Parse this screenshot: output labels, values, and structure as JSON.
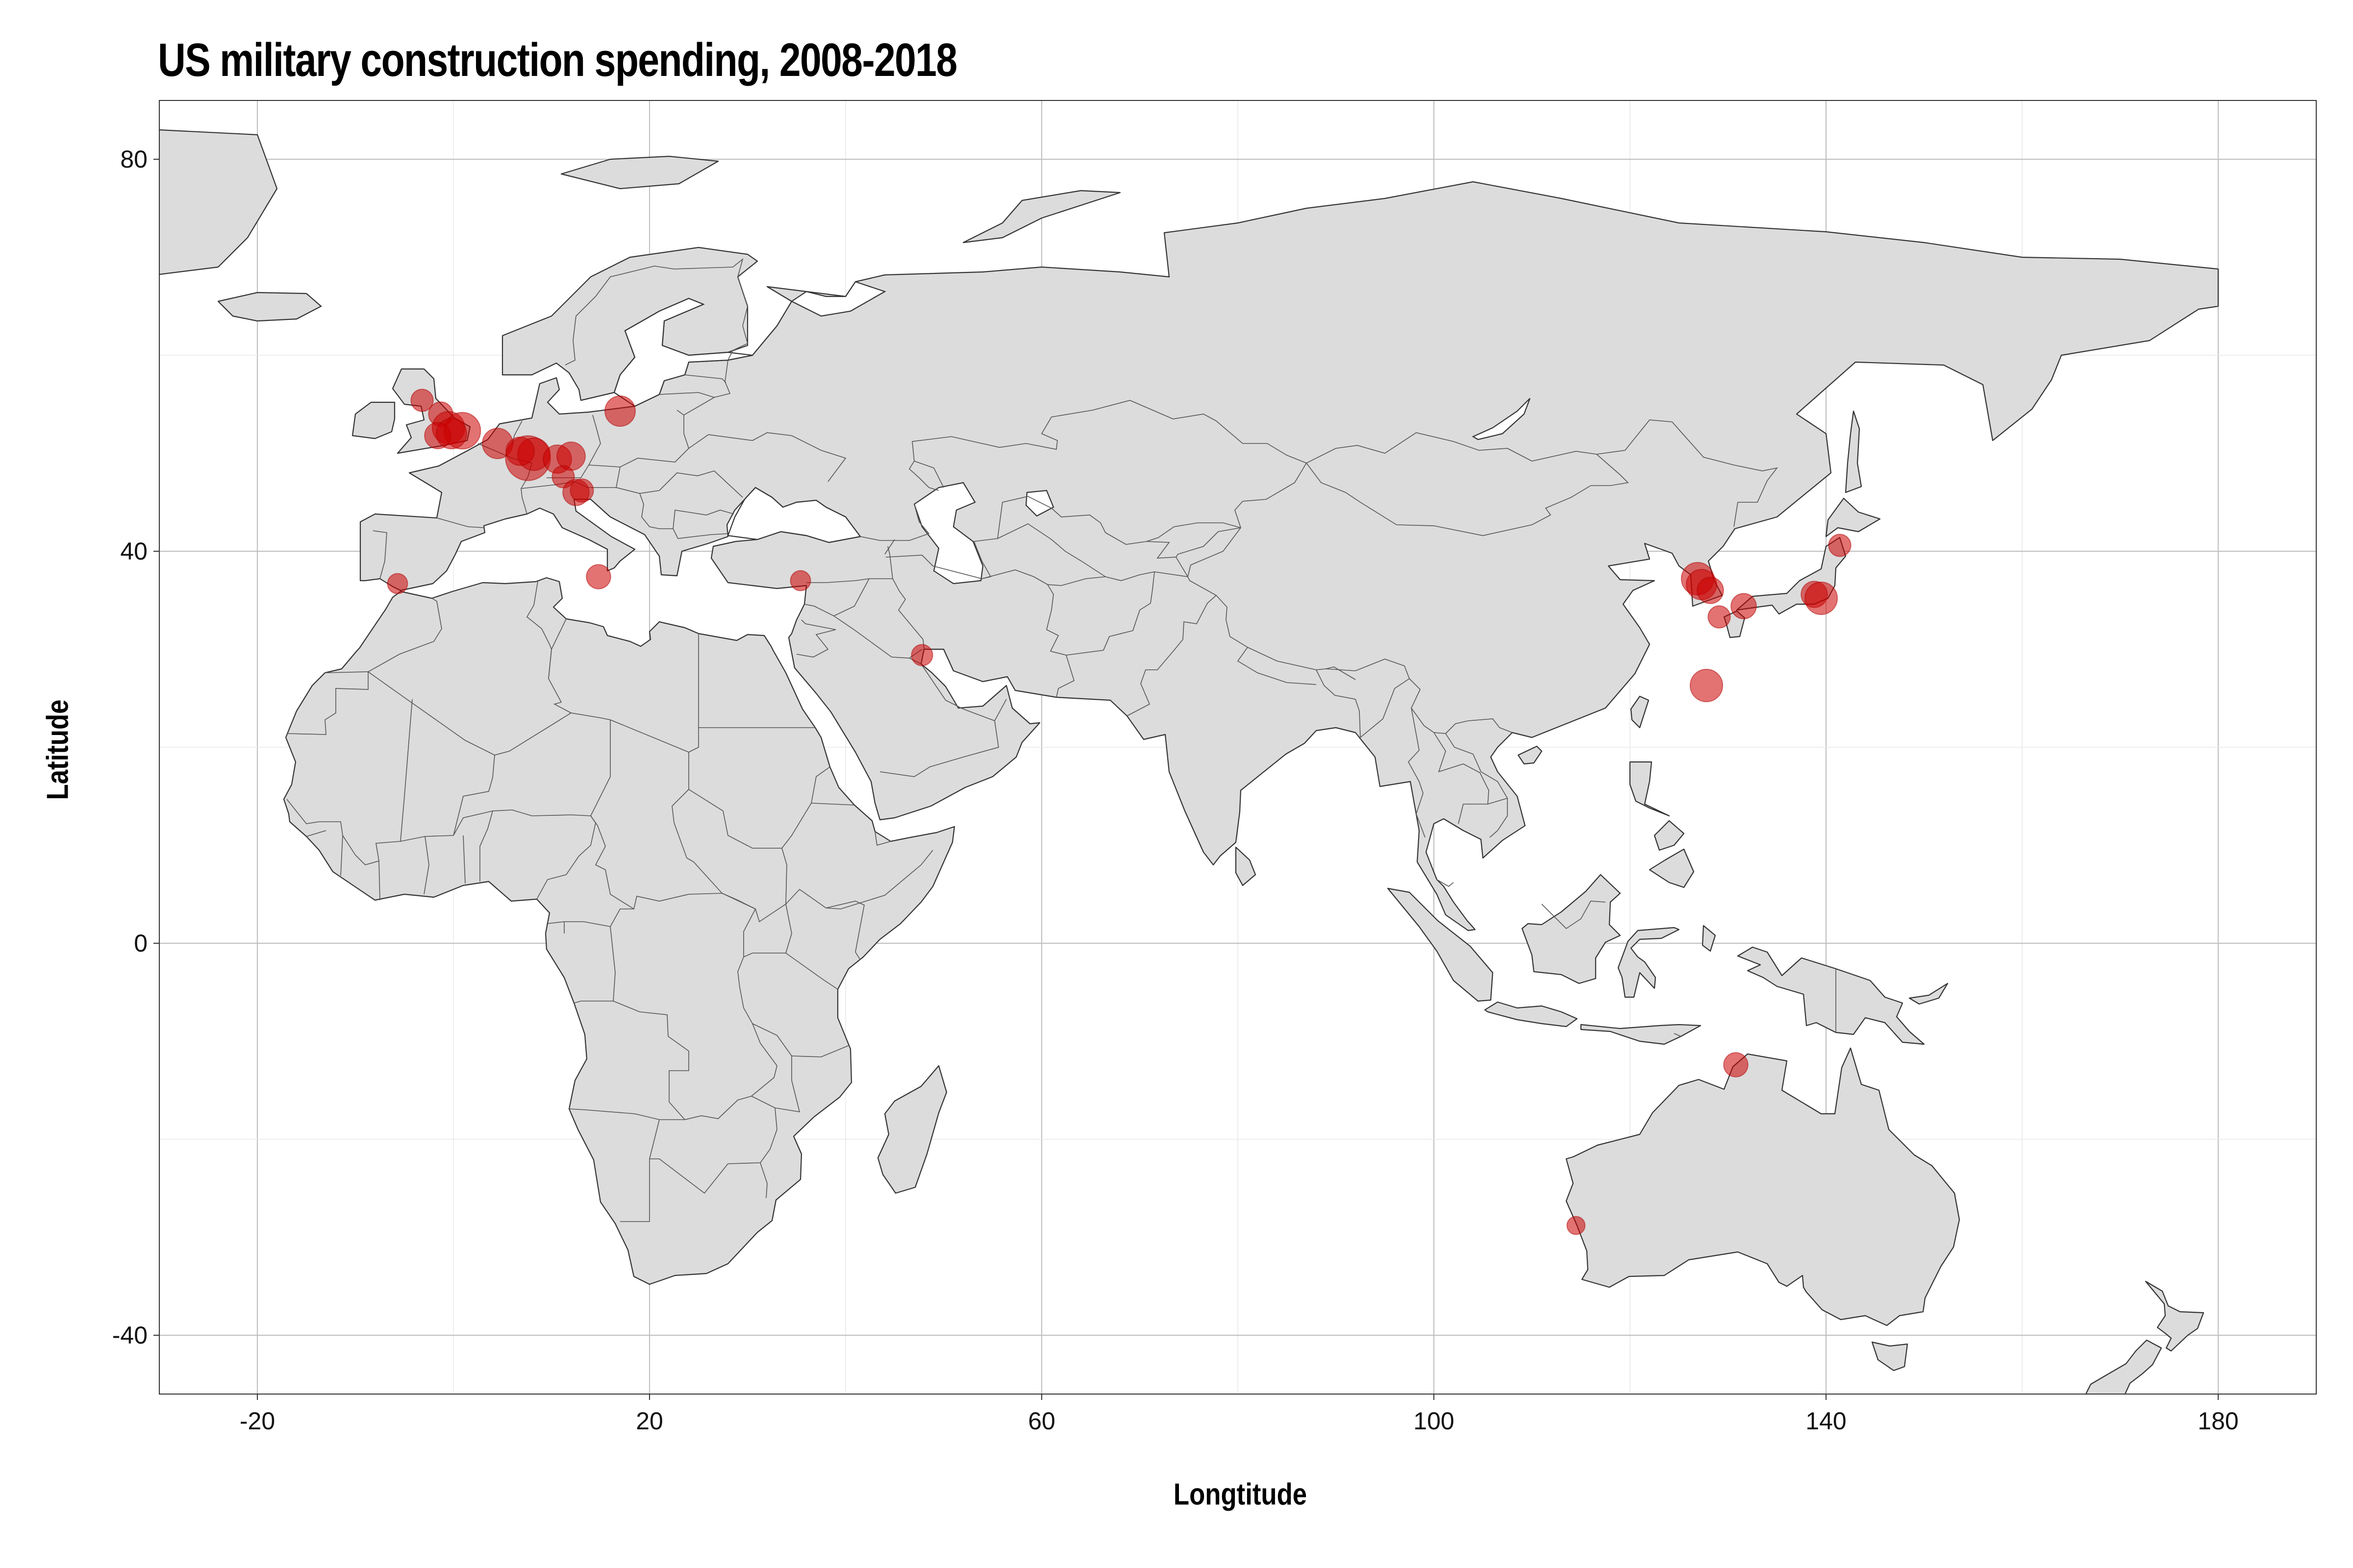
{
  "chart_data": {
    "type": "scatter",
    "title": "US military construction spending, 2008-2018",
    "xlabel": "Longtitude",
    "ylabel": "Latitude",
    "xlim": [
      -30,
      190
    ],
    "ylim": [
      -46,
      86
    ],
    "xticks": [
      -20,
      20,
      60,
      100,
      140,
      180
    ],
    "yticks": [
      -40,
      0,
      40,
      80
    ],
    "grid": true,
    "basemap": "world countries, light grey fill with dark outlines",
    "point_color": "#cc0000",
    "point_opacity": 0.55,
    "points": [
      {
        "lon": -3.2,
        "lat": 55.4,
        "size": 1.2
      },
      {
        "lon": -1.3,
        "lat": 54.0,
        "size": 1.4
      },
      {
        "lon": -0.5,
        "lat": 52.6,
        "size": 2.2
      },
      {
        "lon": 0.9,
        "lat": 52.3,
        "size": 2.6
      },
      {
        "lon": -1.6,
        "lat": 51.8,
        "size": 1.6
      },
      {
        "lon": -0.2,
        "lat": 52.0,
        "size": 2.0
      },
      {
        "lon": 4.5,
        "lat": 51.0,
        "size": 2.0
      },
      {
        "lon": 7.6,
        "lat": 49.5,
        "size": 3.4
      },
      {
        "lon": 8.2,
        "lat": 49.9,
        "size": 2.2
      },
      {
        "lon": 6.8,
        "lat": 50.2,
        "size": 1.8
      },
      {
        "lon": 10.6,
        "lat": 49.4,
        "size": 1.8
      },
      {
        "lon": 12.0,
        "lat": 49.7,
        "size": 1.8
      },
      {
        "lon": 11.2,
        "lat": 47.6,
        "size": 1.2
      },
      {
        "lon": 12.5,
        "lat": 46.0,
        "size": 1.6
      },
      {
        "lon": 13.1,
        "lat": 46.2,
        "size": 1.3
      },
      {
        "lon": 17.0,
        "lat": 54.3,
        "size": 2.0
      },
      {
        "lon": 14.8,
        "lat": 37.4,
        "size": 1.4
      },
      {
        "lon": -5.7,
        "lat": 36.7,
        "size": 1.0
      },
      {
        "lon": 35.4,
        "lat": 37.0,
        "size": 1.0
      },
      {
        "lon": 47.8,
        "lat": 29.4,
        "size": 1.1
      },
      {
        "lon": 126.9,
        "lat": 37.2,
        "size": 2.2
      },
      {
        "lon": 127.3,
        "lat": 36.6,
        "size": 2.0
      },
      {
        "lon": 128.2,
        "lat": 36.0,
        "size": 1.6
      },
      {
        "lon": 129.1,
        "lat": 33.3,
        "size": 1.2
      },
      {
        "lon": 131.6,
        "lat": 34.4,
        "size": 1.5
      },
      {
        "lon": 138.8,
        "lat": 35.6,
        "size": 1.6
      },
      {
        "lon": 139.5,
        "lat": 35.2,
        "size": 2.2
      },
      {
        "lon": 141.4,
        "lat": 40.6,
        "size": 1.2
      },
      {
        "lon": 127.8,
        "lat": 26.3,
        "size": 2.2
      },
      {
        "lon": 130.8,
        "lat": -12.4,
        "size": 1.4
      },
      {
        "lon": 114.5,
        "lat": -28.8,
        "size": 0.8
      }
    ]
  }
}
